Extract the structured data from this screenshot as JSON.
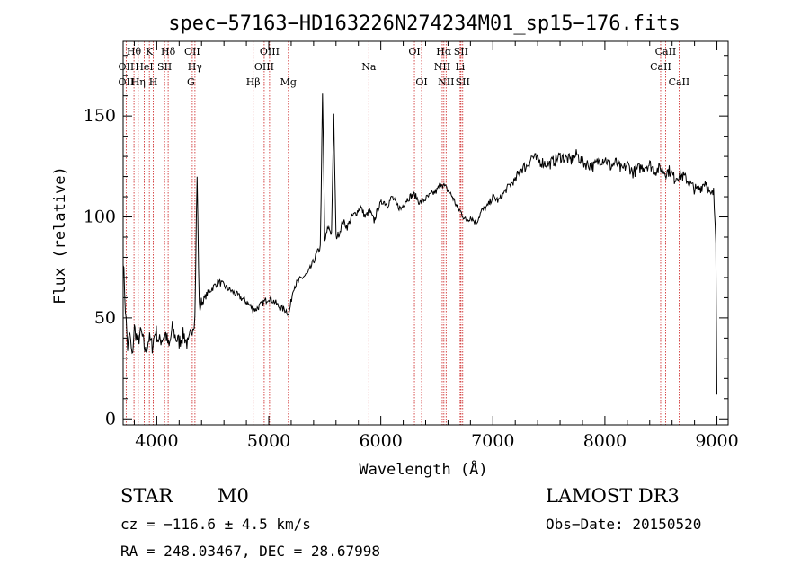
{
  "chart_data": {
    "type": "line",
    "title": "spec−57163−HD163226N274234M01_sp15−176.fits",
    "xlabel": "Wavelength (Å)",
    "ylabel": "Flux (relative)",
    "xlim": [
      3700,
      9100
    ],
    "ylim": [
      -3,
      187
    ],
    "xticks": [
      4000,
      5000,
      6000,
      7000,
      8000,
      9000
    ],
    "yticks": [
      0,
      50,
      100,
      150
    ],
    "grid": false,
    "line_color": "#000000",
    "marker_color": "#cc2020",
    "series": [
      {
        "x": [
          3700,
          3720,
          3740,
          3760,
          3780,
          3800,
          3830,
          3860,
          3900,
          3930,
          3960,
          3990,
          4020,
          4050,
          4080,
          4110,
          4140,
          4170,
          4200,
          4240,
          4280,
          4310,
          4340,
          4360,
          4380,
          4410,
          4450,
          4500,
          4550,
          4600,
          4650,
          4700,
          4750,
          4800,
          4850,
          4880,
          4920,
          4960,
          5000,
          5050,
          5100,
          5150,
          5180,
          5220,
          5260,
          5300,
          5350,
          5400,
          5430,
          5460,
          5480,
          5500,
          5530,
          5560,
          5580,
          5600,
          5630,
          5660,
          5700,
          5740,
          5780,
          5820,
          5860,
          5900,
          5940,
          5980,
          6020,
          6060,
          6100,
          6140,
          6180,
          6220,
          6260,
          6300,
          6350,
          6400,
          6450,
          6500,
          6540,
          6570,
          6600,
          6640,
          6680,
          6720,
          6760,
          6800,
          6850,
          6900,
          6950,
          7000,
          7050,
          7100,
          7150,
          7200,
          7250,
          7300,
          7350,
          7400,
          7450,
          7500,
          7550,
          7600,
          7650,
          7700,
          7750,
          7800,
          7850,
          7900,
          7950,
          8000,
          8050,
          8100,
          8150,
          8200,
          8250,
          8300,
          8350,
          8400,
          8450,
          8500,
          8540,
          8580,
          8620,
          8660,
          8700,
          8740,
          8780,
          8820,
          8860,
          8900,
          8940,
          8970,
          8990,
          9000
        ],
        "y": [
          80,
          55,
          35,
          42,
          30,
          45,
          38,
          43,
          33,
          40,
          36,
          44,
          38,
          40,
          42,
          35,
          45,
          40,
          38,
          42,
          36,
          44,
          50,
          120,
          55,
          58,
          62,
          65,
          68,
          66,
          64,
          62,
          60,
          58,
          55,
          54,
          56,
          58,
          60,
          58,
          55,
          54,
          52,
          65,
          68,
          70,
          72,
          78,
          82,
          85,
          160,
          88,
          95,
          92,
          150,
          90,
          92,
          98,
          95,
          100,
          102,
          105,
          100,
          103,
          98,
          105,
          108,
          106,
          110,
          106,
          104,
          108,
          110,
          111,
          107,
          109,
          111,
          113,
          117,
          115,
          113,
          110,
          105,
          102,
          98,
          100,
          97,
          103,
          105,
          110,
          108,
          112,
          116,
          118,
          124,
          125,
          130,
          128,
          127,
          126,
          128,
          130,
          129,
          128,
          131,
          127,
          126,
          125,
          128,
          129,
          125,
          127,
          123,
          126,
          122,
          124,
          125,
          126,
          123,
          124,
          122,
          123,
          119,
          121,
          120,
          118,
          115,
          113,
          115,
          118,
          110,
          112,
          90,
          12
        ]
      }
    ],
    "spectral_lines": [
      {
        "label": "Hθ",
        "x": 3797,
        "row": 1
      },
      {
        "label": "OII",
        "x": 3727,
        "row": 2
      },
      {
        "label": "OII",
        "x": 3727,
        "row": 3
      },
      {
        "label": "K",
        "x": 3934,
        "row": 1
      },
      {
        "label": "HeI",
        "x": 3889,
        "row": 2
      },
      {
        "label": "Hη",
        "x": 3835,
        "row": 3
      },
      {
        "label": "Hδ",
        "x": 4102,
        "row": 1
      },
      {
        "label": "SII",
        "x": 4070,
        "row": 2
      },
      {
        "label": "H",
        "x": 3969,
        "row": 3
      },
      {
        "label": "OII",
        "x": 4317,
        "row": 1
      },
      {
        "label": "Hγ",
        "x": 4341,
        "row": 2
      },
      {
        "label": "G",
        "x": 4305,
        "row": 3
      },
      {
        "label": "OIII",
        "x": 5007,
        "row": 1
      },
      {
        "label": "OIII",
        "x": 4959,
        "row": 2
      },
      {
        "label": "Hβ",
        "x": 4861,
        "row": 3
      },
      {
        "label": "Mg",
        "x": 5175,
        "row": 3
      },
      {
        "label": "Na",
        "x": 5893,
        "row": 2
      },
      {
        "label": "OI",
        "x": 6300,
        "row": 1
      },
      {
        "label": "OI",
        "x": 6364,
        "row": 3
      },
      {
        "label": "Hα",
        "x": 6563,
        "row": 1
      },
      {
        "label": "SII",
        "x": 6716,
        "row": 1
      },
      {
        "label": "NII",
        "x": 6548,
        "row": 2
      },
      {
        "label": "Li",
        "x": 6708,
        "row": 2
      },
      {
        "label": "NII",
        "x": 6583,
        "row": 3
      },
      {
        "label": "SII",
        "x": 6731,
        "row": 3
      },
      {
        "label": "CaII",
        "x": 8542,
        "row": 1
      },
      {
        "label": "CaII",
        "x": 8498,
        "row": 2
      },
      {
        "label": "CaII",
        "x": 8662,
        "row": 3
      }
    ]
  },
  "info": {
    "class": "STAR",
    "subclass": "M0",
    "survey": "LAMOST DR3",
    "cz": "cz = −116.6 ± 4.5 km/s",
    "obs_date": "Obs−Date: 20150520",
    "radec": "RA = 248.03467, DEC =  28.67998"
  }
}
